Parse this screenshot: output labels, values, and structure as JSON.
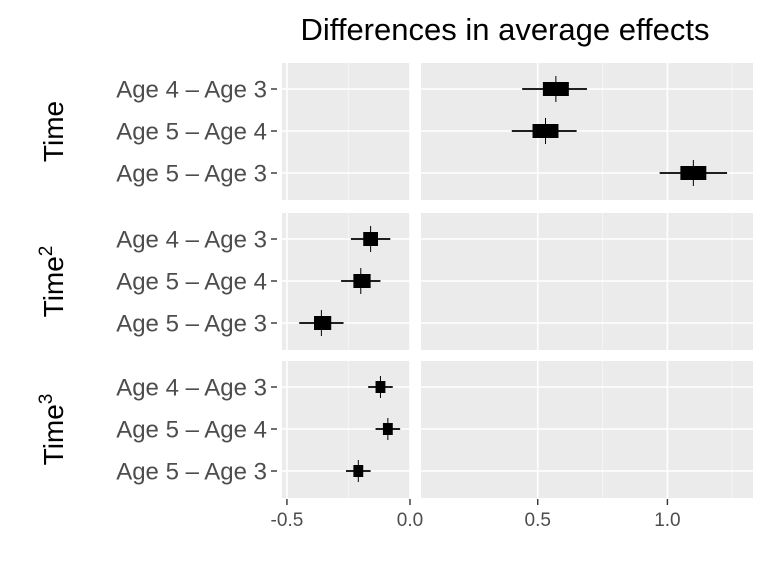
{
  "chart_data": {
    "type": "forest",
    "title": "Differences in average effects",
    "xlabel": "",
    "ylabel": "",
    "xlim": [
      -0.52,
      1.33
    ],
    "xbreak": [
      0.0,
      0.05
    ],
    "x_ticks": [
      -0.5,
      0.0,
      0.5,
      1.0
    ],
    "x_tick_labels": [
      "-0.5",
      "0.0",
      "0.5",
      "1.0"
    ],
    "grid": true,
    "categories": [
      "Age 4 – Age 3",
      "Age 5 – Age 4",
      "Age 5 – Age 3"
    ],
    "panels": [
      {
        "name": "Time",
        "superscript": "",
        "estimates": [
          {
            "label": "Age 4 – Age 3",
            "x": 0.57,
            "inner": [
              0.52,
              0.62
            ],
            "outer": [
              0.44,
              0.69
            ]
          },
          {
            "label": "Age 5 – Age 4",
            "x": 0.53,
            "inner": [
              0.48,
              0.58
            ],
            "outer": [
              0.4,
              0.65
            ]
          },
          {
            "label": "Age 5 – Age 3",
            "x": 1.1,
            "inner": [
              1.05,
              1.15
            ],
            "outer": [
              0.97,
              1.23
            ]
          }
        ]
      },
      {
        "name": "Time",
        "superscript": "2",
        "estimates": [
          {
            "label": "Age 4 – Age 3",
            "x": -0.16,
            "inner": [
              -0.19,
              -0.13
            ],
            "outer": [
              -0.24,
              -0.08
            ]
          },
          {
            "label": "Age 5 – Age 4",
            "x": -0.2,
            "inner": [
              -0.23,
              -0.16
            ],
            "outer": [
              -0.28,
              -0.12
            ]
          },
          {
            "label": "Age 5 – Age 3",
            "x": -0.36,
            "inner": [
              -0.39,
              -0.32
            ],
            "outer": [
              -0.45,
              -0.27
            ]
          }
        ]
      },
      {
        "name": "Time",
        "superscript": "3",
        "estimates": [
          {
            "label": "Age 4 – Age 3",
            "x": -0.12,
            "inner": [
              -0.14,
              -0.1
            ],
            "outer": [
              -0.17,
              -0.07
            ]
          },
          {
            "label": "Age 5 – Age 4",
            "x": -0.09,
            "inner": [
              -0.11,
              -0.07
            ],
            "outer": [
              -0.14,
              -0.04
            ]
          },
          {
            "label": "Age 5 – Age 3",
            "x": -0.21,
            "inner": [
              -0.23,
              -0.19
            ],
            "outer": [
              -0.26,
              -0.16
            ]
          }
        ]
      }
    ]
  }
}
